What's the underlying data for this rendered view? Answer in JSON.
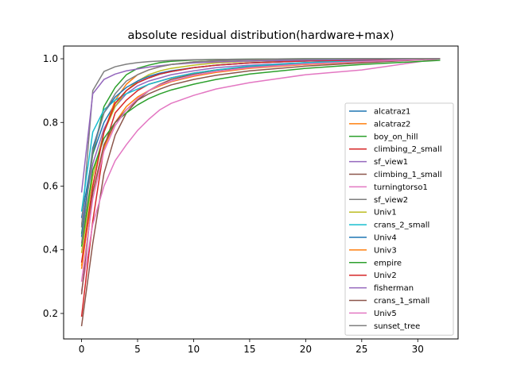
{
  "chart_data": {
    "type": "line",
    "title": "absolute residual distribution(hardware+max)",
    "xlabel": "",
    "ylabel": "",
    "xlim": [
      -1.6,
      33.6
    ],
    "ylim": [
      0.12,
      1.04
    ],
    "xticks": [
      0,
      5,
      10,
      15,
      20,
      25,
      30
    ],
    "yticks": [
      0.2,
      0.4,
      0.6,
      0.8,
      1.0
    ],
    "xtick_labels": [
      "0",
      "5",
      "10",
      "15",
      "20",
      "25",
      "30"
    ],
    "ytick_labels": [
      "0.2",
      "0.4",
      "0.6",
      "0.8",
      "1.0"
    ],
    "grid": false,
    "legend_position": "center-right",
    "series": [
      {
        "name": "alcatraz1",
        "color": "#1f77b4",
        "x": [
          0,
          1,
          2,
          3,
          4,
          5,
          6,
          7,
          8,
          10,
          12,
          15,
          20,
          25,
          32
        ],
        "y": [
          0.5,
          0.7,
          0.8,
          0.86,
          0.9,
          0.925,
          0.94,
          0.952,
          0.96,
          0.972,
          0.98,
          0.987,
          0.993,
          0.996,
          1.0
        ]
      },
      {
        "name": "alcatraz2",
        "color": "#ff7f0e",
        "x": [
          0,
          1,
          2,
          3,
          4,
          5,
          6,
          7,
          8,
          10,
          12,
          15,
          20,
          25,
          32
        ],
        "y": [
          0.34,
          0.6,
          0.77,
          0.87,
          0.92,
          0.95,
          0.965,
          0.975,
          0.982,
          0.99,
          0.994,
          0.997,
          0.999,
          1.0,
          1.0
        ]
      },
      {
        "name": "boy_on_hill",
        "color": "#2ca02c",
        "x": [
          0,
          1,
          2,
          3,
          4,
          5,
          6,
          7,
          8,
          10,
          12,
          15,
          20,
          25,
          32
        ],
        "y": [
          0.45,
          0.7,
          0.85,
          0.91,
          0.95,
          0.97,
          0.98,
          0.988,
          0.992,
          0.996,
          0.998,
          0.999,
          1.0,
          1.0,
          1.0
        ]
      },
      {
        "name": "climbing_2_small",
        "color": "#d62728",
        "x": [
          0,
          1,
          2,
          3,
          4,
          5,
          6,
          7,
          8,
          10,
          12,
          15,
          20,
          25,
          32
        ],
        "y": [
          0.19,
          0.49,
          0.72,
          0.83,
          0.87,
          0.9,
          0.92,
          0.93,
          0.94,
          0.955,
          0.965,
          0.975,
          0.985,
          0.99,
          1.0
        ]
      },
      {
        "name": "sf_view1",
        "color": "#9467bd",
        "x": [
          0,
          1,
          2,
          3,
          4,
          5,
          6,
          7,
          8,
          10,
          12,
          15,
          20,
          25,
          32
        ],
        "y": [
          0.48,
          0.67,
          0.78,
          0.85,
          0.89,
          0.915,
          0.93,
          0.94,
          0.95,
          0.962,
          0.972,
          0.98,
          0.988,
          0.993,
          1.0
        ]
      },
      {
        "name": "climbing_1_small",
        "color": "#8c564b",
        "x": [
          0,
          1,
          2,
          3,
          4,
          5,
          6,
          7,
          8,
          10,
          12,
          15,
          20,
          25,
          32
        ],
        "y": [
          0.16,
          0.42,
          0.64,
          0.76,
          0.83,
          0.87,
          0.9,
          0.92,
          0.935,
          0.952,
          0.964,
          0.975,
          0.985,
          0.991,
          1.0
        ]
      },
      {
        "name": "turningtorso1",
        "color": "#e377c2",
        "x": [
          0,
          1,
          2,
          3,
          4,
          5,
          6,
          7,
          8,
          10,
          12,
          15,
          20,
          25,
          32
        ],
        "y": [
          0.27,
          0.48,
          0.6,
          0.68,
          0.73,
          0.775,
          0.81,
          0.84,
          0.86,
          0.885,
          0.905,
          0.925,
          0.95,
          0.965,
          1.0
        ]
      },
      {
        "name": "sf_view2",
        "color": "#7f7f7f",
        "x": [
          0,
          1,
          2,
          3,
          4,
          5,
          6,
          7,
          8,
          10,
          12,
          15,
          20,
          25,
          32
        ],
        "y": [
          0.47,
          0.9,
          0.96,
          0.975,
          0.983,
          0.988,
          0.991,
          0.993,
          0.995,
          0.997,
          0.998,
          0.999,
          1.0,
          1.0,
          1.0
        ]
      },
      {
        "name": "Univ1",
        "color": "#bcbd22",
        "x": [
          0,
          1,
          2,
          3,
          4,
          5,
          6,
          7,
          8,
          10,
          12,
          15,
          20,
          25,
          32
        ],
        "y": [
          0.39,
          0.63,
          0.77,
          0.85,
          0.9,
          0.93,
          0.95,
          0.962,
          0.97,
          0.98,
          0.987,
          0.992,
          0.996,
          0.998,
          1.0
        ]
      },
      {
        "name": "crans_2_small",
        "color": "#17becf",
        "x": [
          0,
          1,
          2,
          3,
          4,
          5,
          6,
          7,
          8,
          10,
          12,
          15,
          20,
          25,
          32
        ],
        "y": [
          0.52,
          0.77,
          0.84,
          0.87,
          0.89,
          0.905,
          0.92,
          0.93,
          0.94,
          0.955,
          0.965,
          0.977,
          0.988,
          0.994,
          1.0
        ]
      },
      {
        "name": "Univ4",
        "color": "#1f77b4",
        "x": [
          0,
          1,
          2,
          3,
          4,
          5,
          6,
          7,
          8,
          10,
          12,
          15,
          20,
          25,
          32
        ],
        "y": [
          0.44,
          0.72,
          0.83,
          0.88,
          0.91,
          0.93,
          0.945,
          0.955,
          0.962,
          0.972,
          0.98,
          0.987,
          0.993,
          0.996,
          1.0
        ]
      },
      {
        "name": "Univ3",
        "color": "#ff7f0e",
        "x": [
          0,
          1,
          2,
          3,
          4,
          5,
          6,
          7,
          8,
          10,
          12,
          15,
          20,
          25,
          32
        ],
        "y": [
          0.35,
          0.58,
          0.72,
          0.8,
          0.85,
          0.88,
          0.9,
          0.915,
          0.928,
          0.945,
          0.957,
          0.97,
          0.982,
          0.99,
          1.0
        ]
      },
      {
        "name": "empire",
        "color": "#2ca02c",
        "x": [
          0,
          1,
          2,
          3,
          4,
          5,
          6,
          7,
          8,
          10,
          12,
          15,
          20,
          25,
          32
        ],
        "y": [
          0.41,
          0.65,
          0.75,
          0.8,
          0.83,
          0.855,
          0.875,
          0.89,
          0.902,
          0.92,
          0.935,
          0.952,
          0.97,
          0.982,
          0.995
        ]
      },
      {
        "name": "Univ2",
        "color": "#d62728",
        "x": [
          0,
          1,
          2,
          3,
          4,
          5,
          6,
          7,
          8,
          10,
          12,
          15,
          20,
          25,
          32
        ],
        "y": [
          0.36,
          0.6,
          0.77,
          0.86,
          0.9,
          0.925,
          0.94,
          0.952,
          0.96,
          0.972,
          0.98,
          0.987,
          0.993,
          0.996,
          1.0
        ]
      },
      {
        "name": "fisherman",
        "color": "#9467bd",
        "x": [
          0,
          1,
          2,
          3,
          4,
          5,
          6,
          7,
          8,
          10,
          12,
          15,
          20,
          25,
          32
        ],
        "y": [
          0.58,
          0.89,
          0.935,
          0.952,
          0.962,
          0.968,
          0.974,
          0.978,
          0.982,
          0.987,
          0.99,
          0.993,
          0.996,
          0.998,
          1.0
        ]
      },
      {
        "name": "crans_1_small",
        "color": "#8c564b",
        "x": [
          0,
          1,
          2,
          3,
          4,
          5,
          6,
          7,
          8,
          10,
          12,
          15,
          20,
          25,
          32
        ],
        "y": [
          0.26,
          0.58,
          0.73,
          0.8,
          0.84,
          0.87,
          0.89,
          0.905,
          0.918,
          0.935,
          0.948,
          0.962,
          0.977,
          0.987,
          1.0
        ]
      },
      {
        "name": "Univ5",
        "color": "#e377c2",
        "x": [
          0,
          1,
          2,
          3,
          4,
          5,
          6,
          7,
          8,
          10,
          12,
          15,
          20,
          25,
          32
        ],
        "y": [
          0.3,
          0.56,
          0.71,
          0.79,
          0.84,
          0.875,
          0.9,
          0.918,
          0.93,
          0.948,
          0.96,
          0.972,
          0.984,
          0.991,
          1.0
        ]
      },
      {
        "name": "sunset_tree",
        "color": "#7f7f7f",
        "x": [
          0,
          1,
          2,
          3,
          4,
          5,
          6,
          7,
          8,
          10,
          12,
          15,
          20,
          25,
          32
        ],
        "y": [
          0.42,
          0.71,
          0.83,
          0.89,
          0.93,
          0.95,
          0.965,
          0.975,
          0.982,
          0.99,
          0.994,
          0.997,
          0.999,
          1.0,
          1.0
        ]
      }
    ]
  }
}
